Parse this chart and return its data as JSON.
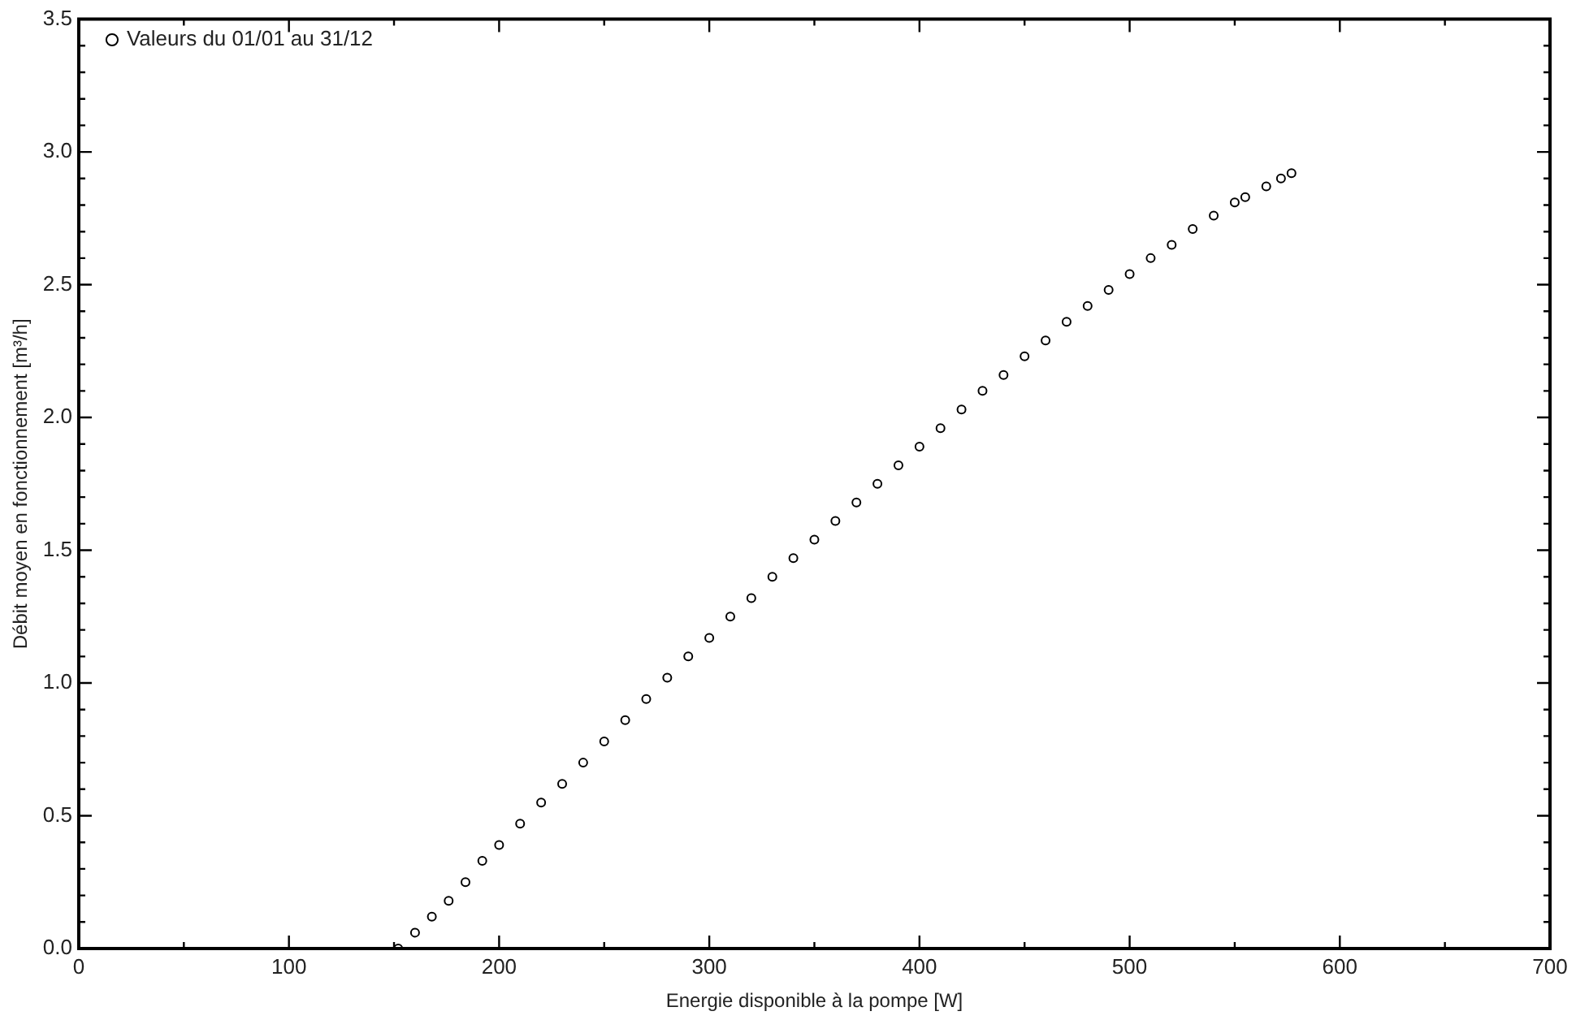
{
  "chart_data": {
    "type": "scatter",
    "xlabel": "Energie disponible à la pompe [W]",
    "ylabel": "Débit moyen en fonctionnement [m³/h]",
    "xlim": [
      0,
      700
    ],
    "xticks": [
      0,
      {
        "value": 50,
        "label": null
      },
      100,
      {
        "value": 150,
        "label": null
      },
      200,
      {
        "value": 250,
        "label": null
      },
      300,
      {
        "value": 350,
        "label": null
      },
      400,
      {
        "value": 450,
        "label": null
      },
      500,
      {
        "value": 550,
        "label": null
      },
      600,
      {
        "value": 650,
        "label": null
      },
      700
    ],
    "ylim": [
      0,
      3.5
    ],
    "yticks": [
      {
        "value": 0,
        "label": "0.0"
      },
      {
        "value": 0.1,
        "label": null
      },
      {
        "value": 0.2,
        "label": null
      },
      {
        "value": 0.3,
        "label": null
      },
      {
        "value": 0.4,
        "label": null
      },
      {
        "value": 0.5,
        "label": "0.5"
      },
      {
        "value": 0.6,
        "label": null
      },
      {
        "value": 0.7,
        "label": null
      },
      {
        "value": 0.8,
        "label": null
      },
      {
        "value": 0.9,
        "label": null
      },
      {
        "value": 1,
        "label": "1.0"
      },
      {
        "value": 1.1,
        "label": null
      },
      {
        "value": 1.2,
        "label": null
      },
      {
        "value": 1.3,
        "label": null
      },
      {
        "value": 1.4,
        "label": null
      },
      {
        "value": 1.5,
        "label": "1.5"
      },
      {
        "value": 1.6,
        "label": null
      },
      {
        "value": 1.7,
        "label": null
      },
      {
        "value": 1.8,
        "label": null
      },
      {
        "value": 1.9,
        "label": null
      },
      {
        "value": 2,
        "label": "2.0"
      },
      {
        "value": 2.1,
        "label": null
      },
      {
        "value": 2.2,
        "label": null
      },
      {
        "value": 2.3,
        "label": null
      },
      {
        "value": 2.4,
        "label": null
      },
      {
        "value": 2.5,
        "label": "2.5"
      },
      {
        "value": 2.6,
        "label": null
      },
      {
        "value": 2.7,
        "label": null
      },
      {
        "value": 2.8,
        "label": null
      },
      {
        "value": 2.9,
        "label": null
      },
      {
        "value": 3,
        "label": "3.0"
      },
      {
        "value": 3.1,
        "label": null
      },
      {
        "value": 3.2,
        "label": null
      },
      {
        "value": 3.3,
        "label": null
      },
      {
        "value": 3.4,
        "label": null
      },
      {
        "value": 3.5,
        "label": "3.5"
      }
    ],
    "grid": false,
    "legend": "top left",
    "marker": "circle",
    "series": [
      {
        "name": "Valeurs du 01/01 au 31/12",
        "color": "#000000",
        "x": [
          152,
          160,
          168,
          176,
          184,
          192,
          200,
          210,
          220,
          230,
          240,
          250,
          260,
          270,
          280,
          290,
          300,
          310,
          320,
          330,
          340,
          350,
          360,
          370,
          380,
          390,
          400,
          410,
          420,
          430,
          440,
          450,
          460,
          470,
          480,
          490,
          500,
          510,
          520,
          530,
          540,
          550,
          555,
          565,
          572,
          577
        ],
        "values": [
          0,
          0.06,
          0.12,
          0.18,
          0.25,
          0.33,
          0.39,
          0.47,
          0.55,
          0.62,
          0.7,
          0.78,
          0.86,
          0.94,
          1.02,
          1.1,
          1.17,
          1.25,
          1.32,
          1.4,
          1.47,
          1.54,
          1.61,
          1.68,
          1.75,
          1.82,
          1.89,
          1.96,
          2.03,
          2.1,
          2.16,
          2.23,
          2.29,
          2.36,
          2.42,
          2.48,
          2.54,
          2.6,
          2.65,
          2.71,
          2.76,
          2.81,
          2.83,
          2.87,
          2.9,
          2.92
        ]
      }
    ]
  }
}
